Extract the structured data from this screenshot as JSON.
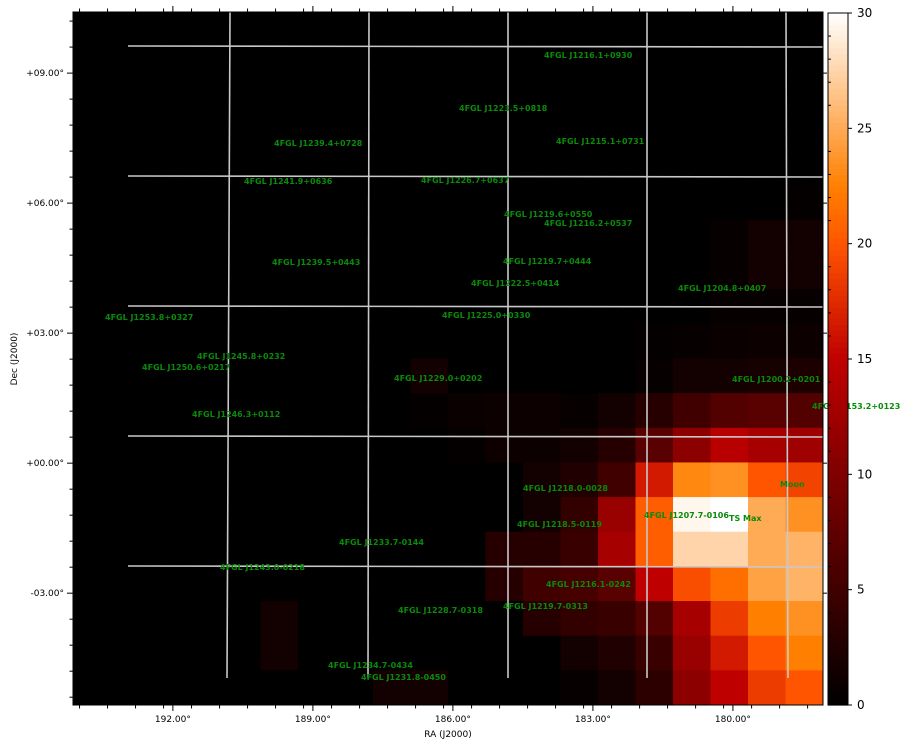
{
  "chart_data": {
    "type": "heatmap",
    "xlabel": "RA (J2000)",
    "ylabel": "Dec (J2000)",
    "xlim": [
      194.14,
      178.07
    ],
    "ylim": [
      -5.58,
      10.41
    ],
    "x_ticks": [
      192,
      189,
      186,
      183,
      180
    ],
    "x_tick_labels": [
      "192.00°",
      "189.00°",
      "186.00°",
      "183.00°",
      "180.00°"
    ],
    "y_ticks": [
      9,
      6,
      3,
      0,
      -3
    ],
    "y_tick_labels": [
      "+09.00°",
      "+06.00°",
      "+03.00°",
      "+00.00°",
      "-03.00°"
    ],
    "colormap": "gist_heat",
    "colorbar": {
      "range": [
        0,
        30
      ],
      "ticks": [
        0,
        5,
        10,
        15,
        20,
        25,
        30
      ],
      "tick_labels": [
        "0",
        "5",
        "10",
        "15",
        "20",
        "25",
        "30"
      ]
    },
    "grid": true,
    "grid_color": "#c8c8c8",
    "label_color": "#0a8a0a",
    "values": [
      [
        0,
        0,
        0,
        0,
        0,
        0,
        0,
        0,
        0,
        0,
        0,
        0,
        0,
        0,
        0,
        0,
        0,
        0,
        0,
        0
      ],
      [
        0,
        0,
        0,
        0,
        0,
        0,
        0,
        0,
        0,
        0,
        0,
        0,
        0,
        0,
        0,
        0,
        0,
        0,
        0,
        0
      ],
      [
        0,
        0,
        0,
        0,
        0,
        0,
        0,
        0,
        0,
        0,
        0,
        0,
        0,
        0,
        0,
        0,
        0,
        0,
        0,
        0
      ],
      [
        0,
        0,
        0,
        0,
        0,
        0,
        0,
        0,
        0,
        0,
        0,
        0,
        0,
        0,
        0,
        0,
        0,
        0,
        0,
        0
      ],
      [
        0,
        0,
        0,
        0,
        0,
        0,
        0,
        0,
        0,
        0,
        0,
        0,
        0,
        0,
        0,
        0,
        0,
        0,
        0,
        0
      ],
      [
        0,
        0,
        0,
        0,
        0,
        0,
        0,
        0,
        0,
        0,
        0,
        0,
        0,
        0,
        0,
        0,
        0,
        0,
        0,
        0.3
      ],
      [
        0,
        0,
        0,
        0,
        0,
        0,
        0,
        0,
        0,
        0,
        0,
        0,
        0,
        0,
        0,
        0,
        0,
        0.5,
        1.5,
        1.5
      ],
      [
        0,
        0,
        0,
        0,
        0,
        0,
        0,
        0,
        0,
        0,
        0,
        0,
        0,
        0,
        0,
        0,
        0,
        0.5,
        1.5,
        1.5
      ],
      [
        0,
        0,
        0,
        0,
        0,
        0,
        0,
        0,
        0,
        0,
        0,
        0,
        0,
        0,
        0,
        0,
        0,
        0.5,
        0.5,
        0.5
      ],
      [
        0,
        0,
        0,
        0,
        0,
        0,
        0,
        0,
        0,
        0,
        0,
        0,
        0,
        0,
        0,
        0.3,
        0.5,
        0.8,
        1,
        1
      ],
      [
        0,
        0,
        0,
        0,
        0,
        0,
        0,
        0,
        0,
        1.5,
        0,
        0,
        0,
        0,
        0,
        0.5,
        1.5,
        1.5,
        1.8,
        2.2
      ],
      [
        0,
        0,
        0,
        0,
        0,
        0,
        0,
        0,
        0,
        0.3,
        0.8,
        1,
        1,
        0.5,
        1.5,
        3,
        5,
        6.5,
        7,
        6.5
      ],
      [
        0,
        0,
        0,
        0,
        0,
        0,
        0,
        0,
        0,
        0,
        0.3,
        1,
        1,
        1.5,
        3,
        7,
        11,
        14.5,
        13,
        12.5
      ],
      [
        0,
        0,
        0,
        0,
        0,
        0,
        0,
        0,
        0,
        0,
        0,
        0,
        1.5,
        2.5,
        5,
        16.5,
        23,
        23.5,
        20,
        19
      ],
      [
        0,
        0,
        0,
        0,
        0,
        0,
        0,
        0,
        0,
        0,
        0,
        0,
        1.5,
        4,
        12,
        20.5,
        29.5,
        30,
        25,
        23.5
      ],
      [
        0,
        0,
        0,
        0,
        0,
        0,
        0,
        0,
        0,
        0,
        0,
        3,
        3,
        4.5,
        13,
        20.5,
        27.5,
        27.5,
        25,
        25.5
      ],
      [
        0,
        0,
        0,
        0,
        0,
        0,
        0,
        0,
        0,
        0,
        0,
        3,
        5,
        5.5,
        7,
        15,
        19.5,
        21.5,
        24.5,
        25.5
      ],
      [
        0,
        0,
        0,
        0,
        0,
        1.5,
        0,
        0,
        0,
        0,
        0,
        0,
        3,
        4,
        4.5,
        6.5,
        13,
        18.5,
        22.5,
        23.5
      ],
      [
        0,
        0,
        0,
        0,
        0,
        1.5,
        0,
        0,
        0,
        0,
        0,
        0,
        0,
        1.5,
        2.5,
        4.5,
        12,
        16.5,
        20,
        22.5
      ],
      [
        0,
        0,
        0,
        0,
        0,
        0,
        0,
        0,
        1.5,
        1.5,
        0,
        0,
        0,
        0.5,
        1.5,
        3.5,
        11,
        15,
        18.5,
        20
      ]
    ],
    "annotations": [
      "4FGL J1216.1+0930",
      "4FGL J1223.5+0818",
      "4FGL J1239.4+0728",
      "4FGL J1215.1+0731",
      "4FGL J1241.9+0636",
      "4FGL J1226.7+0637",
      "4FGL J1219.6+0550",
      "4FGL J1216.2+0537",
      "4FGL J1239.5+0443",
      "4FGL J1219.7+0444",
      "4FGL J1222.5+0414",
      "4FGL J1204.8+0407",
      "4FGL J1253.8+0327",
      "4FGL J1225.0+0330",
      "4FGL J1245.8+0232",
      "4FGL J1250.6+0217",
      "4FGL J1229.0+0202",
      "4FGL J1200.2+0201",
      "4FGL J1153.2+0123",
      "4FGL J1246.3+0112",
      "4FGL J1218.0-0028",
      "Moon",
      "4FGL J1207.7-0106",
      "TS Max",
      "4FGL J1218.5-0119",
      "4FGL J1233.7-0144",
      "4FGL J1243.0-0218",
      "4FGL J1216.1-0242",
      "4FGL J1228.7-0318",
      "4FGL J1219.7-0313",
      "4FGL J1234.7-0434",
      "4FGL J1231.8-0450"
    ]
  }
}
